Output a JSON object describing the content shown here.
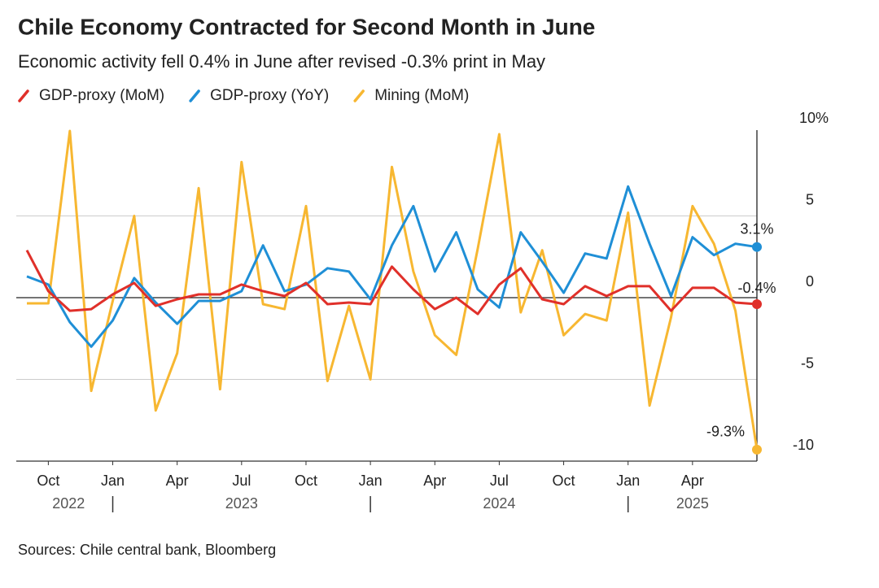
{
  "chart_data": {
    "type": "line",
    "title": "Chile Economy Contracted for Second Month in June",
    "subtitle": "Economic activity fell 0.4% in June after revised -0.3% print in May",
    "source": "Sources: Chile central bank, Bloomberg",
    "x": [
      "2022-08",
      "2022-09",
      "2022-10",
      "2022-11",
      "2022-12",
      "2023-01",
      "2023-02",
      "2023-03",
      "2023-04",
      "2023-05",
      "2023-06",
      "2023-07",
      "2023-08",
      "2023-09",
      "2023-10",
      "2023-11",
      "2023-12",
      "2024-01",
      "2024-02",
      "2024-03",
      "2024-04",
      "2024-05",
      "2024-06",
      "2024-07",
      "2024-08",
      "2024-09",
      "2024-10",
      "2024-11",
      "2024-12",
      "2025-01",
      "2025-02",
      "2025-03",
      "2025-04",
      "2025-05",
      "2025-06"
    ],
    "series": [
      {
        "name": "GDP-proxy (MoM)",
        "color": "#e0302a",
        "end_label": "-0.4%",
        "values": [
          2.9,
          0.4,
          -0.8,
          -0.7,
          0.2,
          0.9,
          -0.5,
          -0.1,
          0.2,
          0.2,
          0.8,
          0.4,
          0.1,
          0.9,
          -0.4,
          -0.3,
          -0.4,
          1.9,
          0.5,
          -0.7,
          0.0,
          -1.0,
          0.8,
          1.8,
          -0.1,
          -0.4,
          0.7,
          0.1,
          0.7,
          0.7,
          -0.8,
          0.6,
          0.6,
          -0.3,
          -0.4
        ]
      },
      {
        "name": "GDP-proxy (YoY)",
        "color": "#1f8fd6",
        "end_label": "3.1%",
        "values": [
          1.3,
          0.8,
          -1.5,
          -3.0,
          -1.4,
          1.2,
          -0.3,
          -1.6,
          -0.2,
          -0.2,
          0.4,
          3.2,
          0.4,
          0.8,
          1.8,
          1.6,
          -0.1,
          3.2,
          5.6,
          1.6,
          4.0,
          0.5,
          -0.6,
          4.0,
          2.2,
          0.3,
          2.7,
          2.4,
          6.8,
          3.3,
          0.1,
          3.7,
          2.6,
          3.3,
          3.1
        ]
      },
      {
        "name": "Mining (MoM)",
        "color": "#f7b731",
        "end_label": "-9.3%",
        "values": [
          -0.35,
          -0.35,
          10.2,
          -5.7,
          -0.2,
          5.0,
          -6.9,
          -3.4,
          6.7,
          -5.6,
          8.3,
          -0.4,
          -0.7,
          5.6,
          -5.1,
          -0.5,
          -5.0,
          8.0,
          1.6,
          -2.3,
          -3.5,
          3.0,
          10.0,
          -0.9,
          2.9,
          -2.3,
          -1.0,
          -1.4,
          5.2,
          -6.6,
          -1.2,
          5.6,
          3.3,
          -0.8,
          -9.3
        ]
      }
    ],
    "ylim": [
      -10,
      10
    ],
    "yticks": [
      {
        "value": 10,
        "label": "10%"
      },
      5,
      0,
      -5,
      -10
    ],
    "xticks": [
      {
        "value": "2022-10",
        "label": "Oct"
      },
      {
        "value": "2023-01",
        "label": "Jan"
      },
      {
        "value": "2023-04",
        "label": "Apr"
      },
      {
        "value": "2023-07",
        "label": "Jul"
      },
      {
        "value": "2023-10",
        "label": "Oct"
      },
      {
        "value": "2024-01",
        "label": "Jan"
      },
      {
        "value": "2024-04",
        "label": "Apr"
      },
      {
        "value": "2024-07",
        "label": "Jul"
      },
      {
        "value": "2024-10",
        "label": "Oct"
      },
      {
        "value": "2025-01",
        "label": "Jan"
      },
      {
        "value": "2025-04",
        "label": "Apr"
      }
    ],
    "years": [
      "2022",
      "2023",
      "2024",
      "2025"
    ],
    "grid": true
  }
}
